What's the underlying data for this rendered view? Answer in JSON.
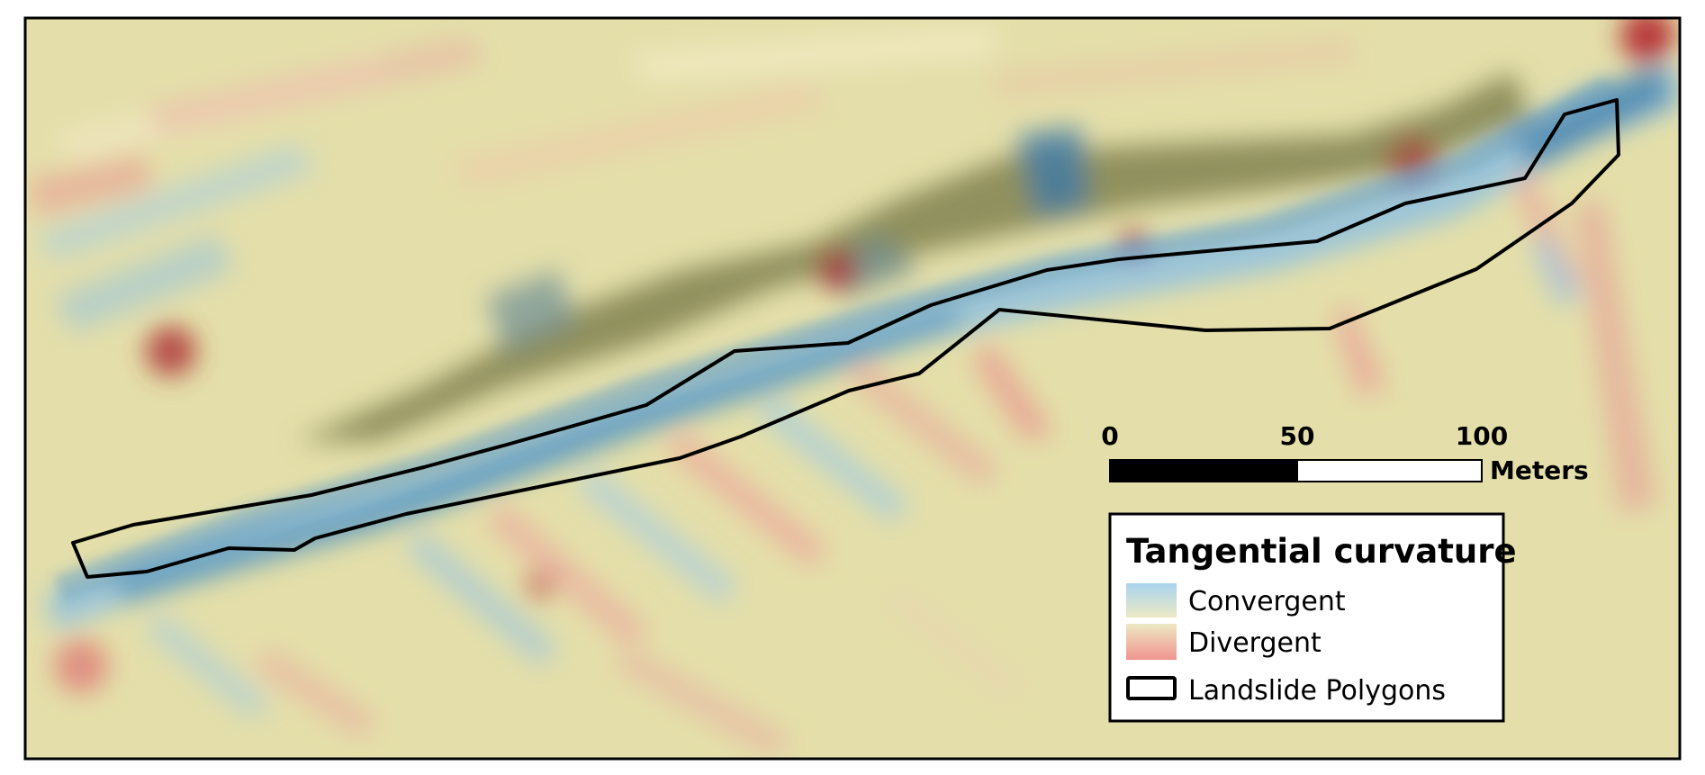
{
  "map": {
    "colors": {
      "background": "#e4dfaa",
      "convergent": "#9ec8e6",
      "convergent_dark": "#3c7ca8",
      "divergent": "#ed9b96",
      "divergent_dark": "#a8302f",
      "scarp_band": "#8d8c5a",
      "polygon_outline": "#000000"
    }
  },
  "scale_bar": {
    "tick_0": "0",
    "tick_50": "50",
    "tick_100": "100",
    "units": "Meters"
  },
  "legend": {
    "title": "Tangential curvature",
    "items": [
      {
        "label": "Convergent",
        "swatch": "convergent-gradient-icon"
      },
      {
        "label": "Divergent",
        "swatch": "divergent-gradient-icon"
      },
      {
        "label": "Landslide Polygons",
        "swatch": "polygon-outline-icon"
      }
    ]
  }
}
